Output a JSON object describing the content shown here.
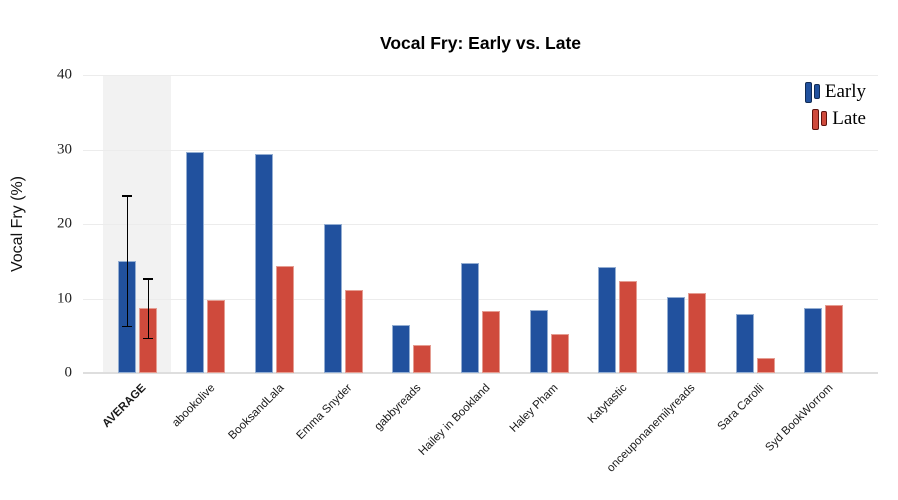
{
  "chart_data": {
    "type": "bar",
    "title": "Vocal Fry: Early vs. Late",
    "xlabel": "",
    "ylabel": "Vocal Fry (%)",
    "ylim": [
      0,
      40
    ],
    "yticks": [
      0,
      10,
      20,
      30,
      40
    ],
    "grid": true,
    "legend_position": "top-right",
    "highlighted_category": "AVERAGE",
    "categories": [
      "AVERAGE",
      "abookolive",
      "BooksandLala",
      "Emma Snyder",
      "gabbyreads",
      "Hailey in Bookland",
      "Haley Pham",
      "Katytastic",
      "onceuponanemilyreads",
      "Sara Carolli",
      "Syd BookWorrom"
    ],
    "series": [
      {
        "name": "Early",
        "color": "#21519e",
        "bar_edge_color": "#94aed2",
        "legend_edge_color": "#122c55",
        "values": [
          15.0,
          29.6,
          29.4,
          20.0,
          6.4,
          14.8,
          8.4,
          14.2,
          10.2,
          7.9,
          8.7
        ],
        "error_low": [
          6.3,
          null,
          null,
          null,
          null,
          null,
          null,
          null,
          null,
          null,
          null
        ],
        "error_high": [
          23.7,
          null,
          null,
          null,
          null,
          null,
          null,
          null,
          null,
          null,
          null
        ]
      },
      {
        "name": "Late",
        "color": "#cf4a3c",
        "bar_edge_color": "#e59d92",
        "legend_edge_color": "#5e120d",
        "values": [
          8.7,
          9.8,
          14.3,
          11.2,
          3.8,
          8.3,
          5.2,
          12.4,
          10.7,
          2.0,
          9.1
        ],
        "error_low": [
          4.7,
          null,
          null,
          null,
          null,
          null,
          null,
          null,
          null,
          null,
          null
        ],
        "error_high": [
          12.6,
          null,
          null,
          null,
          null,
          null,
          null,
          null,
          null,
          null,
          null
        ]
      }
    ],
    "colors": {
      "highlight_band": "#f2f2f2",
      "gridline": "#ececec",
      "axis_line": "#dedede",
      "error_bar": "#000000",
      "background": "#ffffff"
    }
  }
}
